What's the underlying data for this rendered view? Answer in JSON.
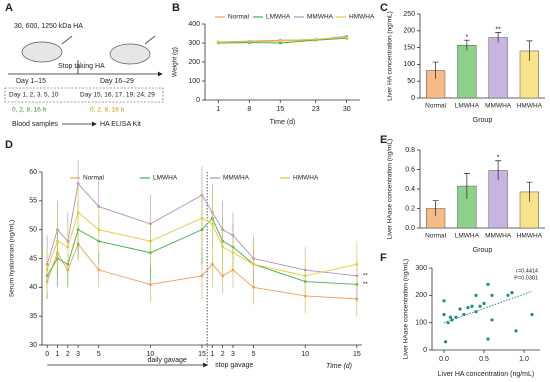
{
  "diagram": {
    "panel": "A",
    "dose": "30, 600, 1250 kDa HA",
    "stop": "Stop taking HA",
    "period1": "Day 1–15",
    "period2": "Day 16–29",
    "days1": "Day 1, 2, 3, 5, 10",
    "days2": "Day 15, 16, 17, 19, 24, 29",
    "hours1": "0, 2, 8, 16 h",
    "hours2": "0, 2, 8, 16 h",
    "blood": "Blood samples",
    "kit": "HA ELISA Kit"
  },
  "chart_data": [
    {
      "type": "line",
      "panel": "B",
      "ylabel": "Weight (g)",
      "xlabel": "Time (d)",
      "x": [
        1,
        8,
        15,
        23,
        30
      ],
      "xlim": [
        -2,
        33
      ],
      "xticks": [
        1,
        8,
        15,
        23,
        30
      ],
      "ylim": [
        0,
        400
      ],
      "yticks": [
        0,
        100,
        200,
        300,
        400
      ],
      "series": [
        {
          "name": "Normal",
          "color": "#f0a050",
          "values": [
            305,
            305,
            310,
            315,
            330
          ]
        },
        {
          "name": "LMWHA",
          "color": "#3cb44b",
          "values": [
            300,
            302,
            300,
            315,
            325
          ]
        },
        {
          "name": "MMWHA",
          "color": "#b08fc7",
          "values": [
            305,
            310,
            315,
            318,
            335
          ]
        },
        {
          "name": "HMWHA",
          "color": "#e8c832",
          "values": [
            303,
            308,
            312,
            320,
            328
          ]
        }
      ]
    },
    {
      "type": "bar",
      "panel": "C",
      "ylabel": "Liver HA concentration (ng/mL)",
      "xlabel": "Group",
      "categories": [
        "Normal",
        "LMWHA",
        "MMWHA",
        "HMWHA"
      ],
      "values": [
        82,
        157,
        180,
        140
      ],
      "errors": [
        25,
        15,
        15,
        30
      ],
      "significance": [
        null,
        "*",
        "**",
        null
      ],
      "colors": [
        "#f6bb86",
        "#8fd18a",
        "#c9b3e0",
        "#f7e38a"
      ],
      "ylim": [
        0,
        250
      ],
      "yticks": [
        0,
        50,
        100,
        150,
        200,
        250
      ]
    },
    {
      "type": "line",
      "panel": "D",
      "ylabel": "Serum hyaluronan (ng/mL)",
      "xlabel": "Time (d)",
      "phase1": "daily gavage",
      "phase2": "stop gavage",
      "end_marks": [
        "**",
        "**"
      ],
      "x": [
        0,
        1,
        2,
        3,
        5,
        10,
        15,
        16,
        17,
        18,
        20,
        25,
        30
      ],
      "xlim": [
        -0.5,
        30.5
      ],
      "xticks": [
        0,
        1,
        2,
        3,
        5,
        10,
        15,
        {
          "value": 16,
          "label": "1"
        },
        {
          "value": 17,
          "label": "2"
        },
        {
          "value": 18,
          "label": "3"
        },
        {
          "value": 20,
          "label": "5"
        },
        {
          "value": 25,
          "label": "10"
        },
        {
          "value": 30,
          "label": "15"
        }
      ],
      "ylim": [
        30,
        60
      ],
      "yticks": [
        30,
        35,
        40,
        45,
        50,
        55,
        60
      ],
      "series": [
        {
          "name": "Normal",
          "color": "#f0a050",
          "values": [
            41,
            46,
            43,
            47.5,
            43,
            40.5,
            42,
            44,
            42,
            43,
            40,
            38.5,
            38
          ],
          "errors": [
            3,
            4,
            3,
            3,
            3,
            3,
            4,
            4,
            3,
            3,
            3,
            3,
            3
          ]
        },
        {
          "name": "LMWHA",
          "color": "#3cb44b",
          "values": [
            42,
            45,
            44,
            50,
            48,
            46,
            50,
            52,
            48,
            47,
            44,
            41,
            40.5
          ],
          "errors": [
            4,
            5,
            4,
            5,
            4,
            5,
            6,
            5,
            4,
            4,
            4,
            3,
            3
          ]
        },
        {
          "name": "MMWHA",
          "color": "#b08fc7",
          "values": [
            44,
            50,
            48,
            58,
            54,
            51,
            56,
            53,
            50,
            49,
            45,
            43,
            42
          ],
          "errors": [
            5,
            5,
            5,
            4,
            5,
            5,
            5,
            5,
            5,
            4,
            4,
            4,
            4
          ]
        },
        {
          "name": "HMWHA",
          "color": "#e8c832",
          "values": [
            43,
            48,
            47,
            53,
            50,
            48,
            52,
            51,
            47,
            46,
            44,
            42,
            44
          ],
          "errors": [
            4,
            5,
            4,
            5,
            4,
            4,
            5,
            5,
            4,
            4,
            4,
            4,
            4
          ]
        }
      ]
    },
    {
      "type": "bar",
      "panel": "E",
      "ylabel": "Liver HAase concentration (ng/mL)",
      "xlabel": "Group",
      "categories": [
        "Normal",
        "LMWHA",
        "MMWHA",
        "HMWHA"
      ],
      "values": [
        0.2,
        0.43,
        0.59,
        0.37
      ],
      "errors": [
        0.08,
        0.13,
        0.1,
        0.1
      ],
      "significance": [
        null,
        null,
        "*",
        null
      ],
      "colors": [
        "#f6bb86",
        "#8fd18a",
        "#c9b3e0",
        "#f7e38a"
      ],
      "ylim": [
        0,
        0.8
      ],
      "yticks": [
        {
          "value": 0,
          "label": "0.0"
        },
        0.2,
        0.4,
        0.6,
        0.8
      ]
    },
    {
      "type": "scatter",
      "panel": "F",
      "ylabel": "Liver HAase concentration (ng/mL)",
      "xlabel": "Liver HA concentration (ng/mL)",
      "stats": [
        "r=0.4414",
        "P=0.0301"
      ],
      "color": "#1f8a8a",
      "x": [
        0,
        0,
        0.02,
        0.05,
        0.08,
        0.1,
        0.15,
        0.2,
        0.25,
        0.3,
        0.35,
        0.4,
        0.4,
        0.45,
        0.5,
        0.55,
        0.55,
        0.6,
        0.6,
        0.8,
        0.85,
        0.9,
        1.1
      ],
      "y": [
        180,
        130,
        30,
        100,
        120,
        110,
        120,
        150,
        130,
        155,
        160,
        200,
        140,
        160,
        170,
        240,
        40,
        110,
        200,
        200,
        210,
        70,
        130
      ],
      "trend_line": {
        "x": [
          0,
          1.1
        ],
        "y": [
          100,
          215
        ]
      },
      "xlim": [
        -0.15,
        1.2
      ],
      "xticks": [
        {
          "value": 0,
          "label": "0.0"
        },
        {
          "value": 0.5,
          "label": "0.5"
        },
        {
          "value": 1,
          "label": "1.0"
        }
      ],
      "ylim": [
        0,
        300
      ],
      "yticks": [
        0,
        100,
        200,
        300
      ]
    }
  ]
}
